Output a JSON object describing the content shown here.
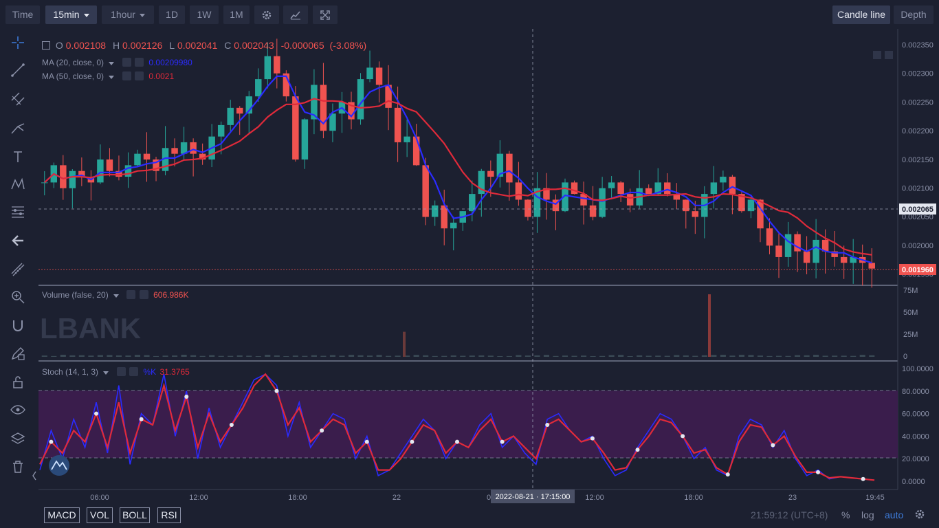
{
  "toolbar": {
    "time_label": "Time",
    "interval_label": "15min",
    "hour_label": "1hour",
    "d1_label": "1D",
    "w1_label": "1W",
    "m1_label": "1M",
    "candle_line_label": "Candle line",
    "depth_label": "Depth"
  },
  "ohlc": {
    "o_key": "O",
    "o_val": "0.002108",
    "h_key": "H",
    "h_val": "0.002126",
    "l_key": "L",
    "l_val": "0.002041",
    "c_key": "C",
    "c_val": "0.002043",
    "change": "-0.000065",
    "change_pct": "(-3.08%)"
  },
  "ma20": {
    "label": "MA (20, close, 0)",
    "value": "0.00209980",
    "color": "#2b2bff"
  },
  "ma50": {
    "label": "MA (50, close, 0)",
    "value": "0.0021",
    "color": "#e02a3a"
  },
  "volume": {
    "label": "Volume (false, 20)",
    "value": "606.986K"
  },
  "stoch": {
    "label": "Stoch (14, 1, 3)",
    "k_key": "%K",
    "k_val": "31.3765"
  },
  "watermark": "LBANK",
  "price_axis": [
    "0.002350",
    "0.002300",
    "0.002250",
    "0.002200",
    "0.002150",
    "0.002100",
    "0.002050",
    "0.002000",
    "0.001950"
  ],
  "current_price": "0.001960",
  "crosshair_price": "0.002065",
  "volume_axis": [
    "75M",
    "50M",
    "25M",
    "0"
  ],
  "stoch_axis": [
    "100.0000",
    "80.0000",
    "60.0000",
    "40.0000",
    "20.0000",
    "0.0000"
  ],
  "time_axis": [
    "06:00",
    "12:00",
    "18:00",
    "22",
    "0",
    "12:00",
    "18:00",
    "23",
    "19:45"
  ],
  "crosshair_time": "2022-08-21 · 17:15:00",
  "indicators": [
    "MACD",
    "VOL",
    "BOLL",
    "RSI"
  ],
  "status": {
    "clock": "21:59:12 (UTC+8)",
    "percent": "%",
    "log": "log",
    "auto": "auto"
  },
  "colors": {
    "up": "#26a69a",
    "down": "#ef5350",
    "ma20": "#2b2bff",
    "ma50": "#e02a3a",
    "stoch_k": "#2b2bff",
    "stoch_d": "#e02a3a",
    "accent": "#3d7bd9"
  },
  "chart_data": {
    "type": "candlestick",
    "y_range": [
      0.00195,
      0.00235
    ],
    "close_series": [
      0.00211,
      0.00214,
      0.0021,
      0.00213,
      0.00212,
      0.00211,
      0.00215,
      0.00213,
      0.00212,
      0.00214,
      0.00216,
      0.00215,
      0.00213,
      0.00217,
      0.00216,
      0.00218,
      0.00216,
      0.00215,
      0.00219,
      0.00221,
      0.00224,
      0.00223,
      0.00226,
      0.00229,
      0.00233,
      0.0023,
      0.00226,
      0.00215,
      0.00222,
      0.00228,
      0.0022,
      0.00223,
      0.00225,
      0.00222,
      0.00229,
      0.00231,
      0.00228,
      0.00224,
      0.00218,
      0.00219,
      0.00214,
      0.00205,
      0.00207,
      0.00203,
      0.00204,
      0.00206,
      0.00209,
      0.00213,
      0.00212,
      0.00216,
      0.00211,
      0.00208,
      0.00205,
      0.0021,
      0.00208,
      0.00206,
      0.00211,
      0.00209,
      0.00207,
      0.00205,
      0.0021,
      0.00211,
      0.00209,
      0.00207,
      0.0021,
      0.00209,
      0.00211,
      0.00209,
      0.00208,
      0.00206,
      0.00205,
      0.00209,
      0.00211,
      0.00212,
      0.00209,
      0.00206,
      0.00208,
      0.00203,
      0.002,
      0.00198,
      0.00202,
      0.00199,
      0.00197,
      0.00201,
      0.00199,
      0.00198,
      0.00197,
      0.00198,
      0.00197,
      0.00196
    ],
    "stoch_k": [
      10,
      45,
      20,
      55,
      30,
      70,
      25,
      85,
      15,
      60,
      50,
      95,
      40,
      80,
      20,
      65,
      30,
      50,
      70,
      90,
      95,
      85,
      40,
      70,
      30,
      45,
      60,
      55,
      20,
      40,
      5,
      10,
      25,
      40,
      55,
      45,
      20,
      35,
      30,
      50,
      60,
      30,
      40,
      25,
      15,
      55,
      60,
      45,
      35,
      40,
      20,
      5,
      10,
      30,
      45,
      60,
      55,
      40,
      20,
      30,
      10,
      5,
      40,
      55,
      50,
      30,
      45,
      20,
      5,
      10,
      2,
      4,
      3,
      2,
      1
    ],
    "stoch_d": [
      15,
      35,
      25,
      45,
      35,
      60,
      30,
      70,
      25,
      55,
      50,
      85,
      45,
      75,
      30,
      60,
      35,
      50,
      65,
      85,
      95,
      80,
      50,
      65,
      35,
      45,
      55,
      50,
      25,
      35,
      10,
      10,
      20,
      35,
      50,
      45,
      25,
      35,
      30,
      45,
      55,
      35,
      40,
      30,
      20,
      50,
      55,
      45,
      35,
      38,
      25,
      10,
      12,
      28,
      40,
      55,
      52,
      40,
      25,
      28,
      12,
      6,
      35,
      50,
      48,
      32,
      40,
      22,
      8,
      8,
      3,
      4,
      3,
      2,
      1
    ],
    "volume_spikes": [
      {
        "x": "22",
        "value": 30
      },
      {
        "x": "18:00",
        "value": 75
      }
    ]
  }
}
